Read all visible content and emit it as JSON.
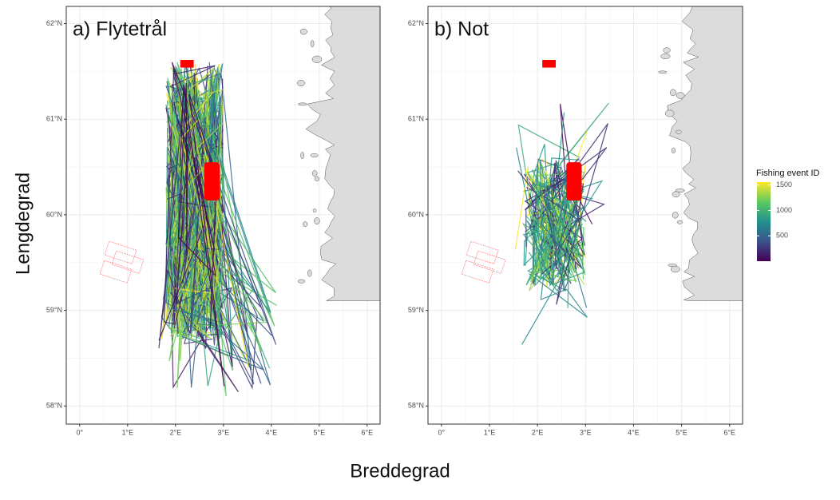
{
  "chart_data": [
    {
      "type": "map",
      "title": "a) Flytetrål",
      "xlim": [
        -0.28,
        6.27
      ],
      "ylim": [
        57.81,
        62.18
      ],
      "xticks": [
        {
          "value": 0,
          "label": "0°"
        },
        {
          "value": 1,
          "label": "1°E"
        },
        {
          "value": 2,
          "label": "2°E"
        },
        {
          "value": 3,
          "label": "3°E"
        },
        {
          "value": 4,
          "label": "4°E"
        },
        {
          "value": 5,
          "label": "5°E"
        },
        {
          "value": 6,
          "label": "6°E"
        }
      ],
      "yticks": [
        {
          "value": 58,
          "label": "58°N"
        },
        {
          "value": 59,
          "label": "59°N"
        },
        {
          "value": 60,
          "label": "60°N"
        },
        {
          "value": 61,
          "label": "61°N"
        },
        {
          "value": 62,
          "label": "62°N"
        }
      ]
    },
    {
      "type": "map",
      "title": "b) Not",
      "xlim": [
        -0.28,
        6.27
      ],
      "ylim": [
        57.81,
        62.18
      ],
      "xticks": [
        {
          "value": 0,
          "label": "0°"
        },
        {
          "value": 1,
          "label": "1°E"
        },
        {
          "value": 2,
          "label": "2°E"
        },
        {
          "value": 3,
          "label": "3°E"
        },
        {
          "value": 4,
          "label": "4°E"
        },
        {
          "value": 5,
          "label": "5°E"
        },
        {
          "value": 6,
          "label": "6°E"
        }
      ],
      "yticks": [
        {
          "value": 58,
          "label": "58°N"
        },
        {
          "value": 59,
          "label": "59°N"
        },
        {
          "value": 60,
          "label": "60°N"
        },
        {
          "value": 61,
          "label": "61°N"
        },
        {
          "value": 62,
          "label": "62°N"
        }
      ]
    }
  ],
  "xlabel": "Breddegrad",
  "ylabel": "Lengdegrad",
  "colorbar": {
    "title": "Fishing event ID",
    "lim": [
      1,
      1560
    ],
    "ticks": [
      500,
      1000,
      1500
    ]
  }
}
